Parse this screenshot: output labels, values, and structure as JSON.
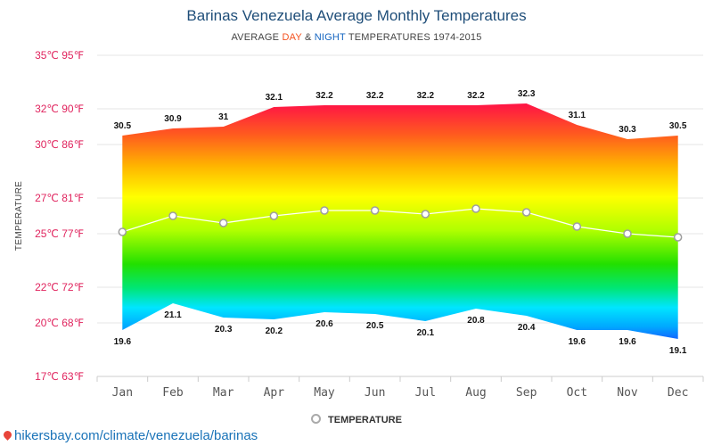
{
  "chart_data": {
    "type": "area",
    "title": "Barinas Venezuela Average Monthly Temperatures",
    "subtitle": {
      "prefix": "AVERAGE ",
      "day": "DAY",
      "amp": " & ",
      "night": "NIGHT",
      "suffix": " TEMPERATURES 1974-2015"
    },
    "ylabel": "TEMPERATURE",
    "ylim": [
      17,
      35
    ],
    "y_ticks": [
      {
        "value": 35,
        "label": "35℃ 95℉"
      },
      {
        "value": 32,
        "label": "32℃ 90℉"
      },
      {
        "value": 30,
        "label": "30℃ 86℉"
      },
      {
        "value": 27,
        "label": "27℃ 81℉"
      },
      {
        "value": 25,
        "label": "25℃ 77℉"
      },
      {
        "value": 22,
        "label": "22℃ 72℉"
      },
      {
        "value": 20,
        "label": "20℃ 68℉"
      },
      {
        "value": 17,
        "label": "17℃ 63℉"
      }
    ],
    "categories": [
      "Jan",
      "Feb",
      "Mar",
      "Apr",
      "May",
      "Jun",
      "Jul",
      "Aug",
      "Sep",
      "Oct",
      "Nov",
      "Dec"
    ],
    "series": [
      {
        "role": "day",
        "values": [
          30.5,
          30.9,
          31,
          32.1,
          32.2,
          32.2,
          32.2,
          32.2,
          32.3,
          31.1,
          30.3,
          30.5
        ]
      },
      {
        "role": "night",
        "values": [
          19.6,
          21.1,
          20.3,
          20.2,
          20.6,
          20.5,
          20.1,
          20.8,
          20.4,
          19.6,
          19.6,
          19.1
        ]
      },
      {
        "name": "TEMPERATURE",
        "values": [
          25.1,
          26.0,
          25.6,
          26.0,
          26.3,
          26.3,
          26.1,
          26.4,
          26.2,
          25.4,
          25.0,
          24.8
        ]
      }
    ],
    "grid": true,
    "legend": "bottom"
  },
  "source": "hikersbay.com/climate/venezuela/barinas"
}
